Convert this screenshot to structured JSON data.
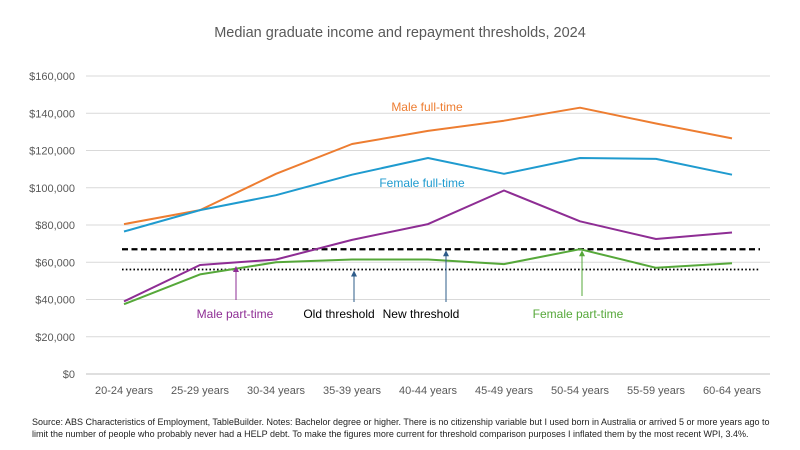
{
  "chart_data": {
    "type": "line",
    "title": "Median graduate income and repayment thresholds, 2024",
    "categories": [
      "20-24 years",
      "25-29 years",
      "30-34 years",
      "35-39 years",
      "40-44 years",
      "45-49 years",
      "50-54 years",
      "55-59 years",
      "60-64 years"
    ],
    "ylim": [
      0,
      160000
    ],
    "yticks": [
      0,
      20000,
      40000,
      60000,
      80000,
      100000,
      120000,
      140000,
      160000
    ],
    "ytick_labels": [
      "$0",
      "$20,000",
      "$40,000",
      "$60,000",
      "$80,000",
      "$100,000",
      "$120,000",
      "$140,000",
      "$160,000"
    ],
    "grid": true,
    "series": [
      {
        "name": "Male full-time",
        "color": "#ED7D31",
        "values": [
          80500,
          88000,
          107500,
          123500,
          130500,
          136000,
          143000,
          134500,
          126500
        ]
      },
      {
        "name": "Female full-time",
        "color": "#1F9BCF",
        "values": [
          76500,
          88000,
          96000,
          107000,
          116000,
          107500,
          116000,
          115500,
          107000
        ]
      },
      {
        "name": "Male part-time",
        "color": "#8E2D94",
        "values": [
          39000,
          58500,
          61500,
          72000,
          80500,
          98500,
          82000,
          72500,
          76000
        ]
      },
      {
        "name": "Female part-time",
        "color": "#56A83A",
        "values": [
          37500,
          53500,
          60000,
          61500,
          61500,
          59000,
          67000,
          57000,
          59500
        ]
      }
    ],
    "thresholds": [
      {
        "name": "Old threshold",
        "value": 56100,
        "style": "dotted"
      },
      {
        "name": "New threshold",
        "value": 67000,
        "style": "dashed"
      }
    ]
  },
  "source_note": "Source: ABS Characteristics of Employment, TableBuilder.  Notes: Bachelor degree or higher. There is no citizenship variable but I used born in Australia or arrived 5 or more years ago to limit the number of people who probably never had a HELP debt. To make the figures more current for threshold comparison purposes I inflated them by the most recent WPI, 3.4%."
}
